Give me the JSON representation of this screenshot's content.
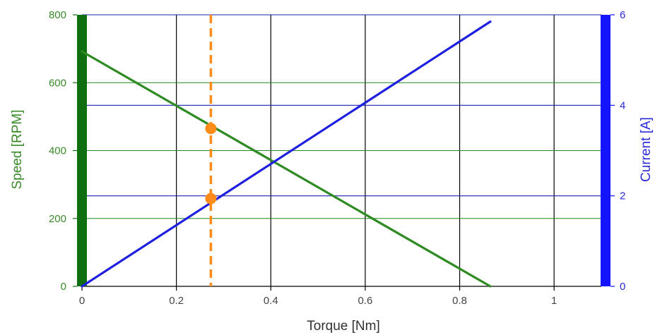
{
  "chart_data": {
    "type": "line",
    "title": "",
    "xlabel": "Torque [Nm]",
    "ylabel": "Speed [RPM]",
    "y2label": "Current [A]",
    "xlim": [
      0,
      1.1
    ],
    "ylim": [
      0,
      800
    ],
    "y2lim": [
      0,
      6
    ],
    "xticks": [
      "0",
      "0.2",
      "0.4",
      "0.6",
      "0.8",
      "1"
    ],
    "yticks": [
      "0",
      "200",
      "400",
      "600",
      "800"
    ],
    "y2ticks": [
      "0",
      "2",
      "4",
      "6"
    ],
    "grid": true,
    "series": [
      {
        "axis": "left",
        "color": "#2e8b22",
        "points": [
          [
            0,
            692
          ],
          [
            0.865,
            0
          ]
        ]
      },
      {
        "axis": "right",
        "color": "#1f1fe0",
        "points": [
          [
            0,
            0
          ],
          [
            0.865,
            5.85
          ]
        ]
      }
    ],
    "marker_line": {
      "x": 0.273,
      "color": "#ff8c1a",
      "style": "dashed"
    },
    "marker_points": [
      {
        "axis": "left",
        "x": 0.273,
        "y": 465,
        "color": "#ff8c1a"
      },
      {
        "axis": "right",
        "x": 0.273,
        "y": 1.94,
        "color": "#ff8c1a"
      }
    ],
    "left_axis_color": "#0f6e0f",
    "right_axis_color": "#1414ff"
  }
}
